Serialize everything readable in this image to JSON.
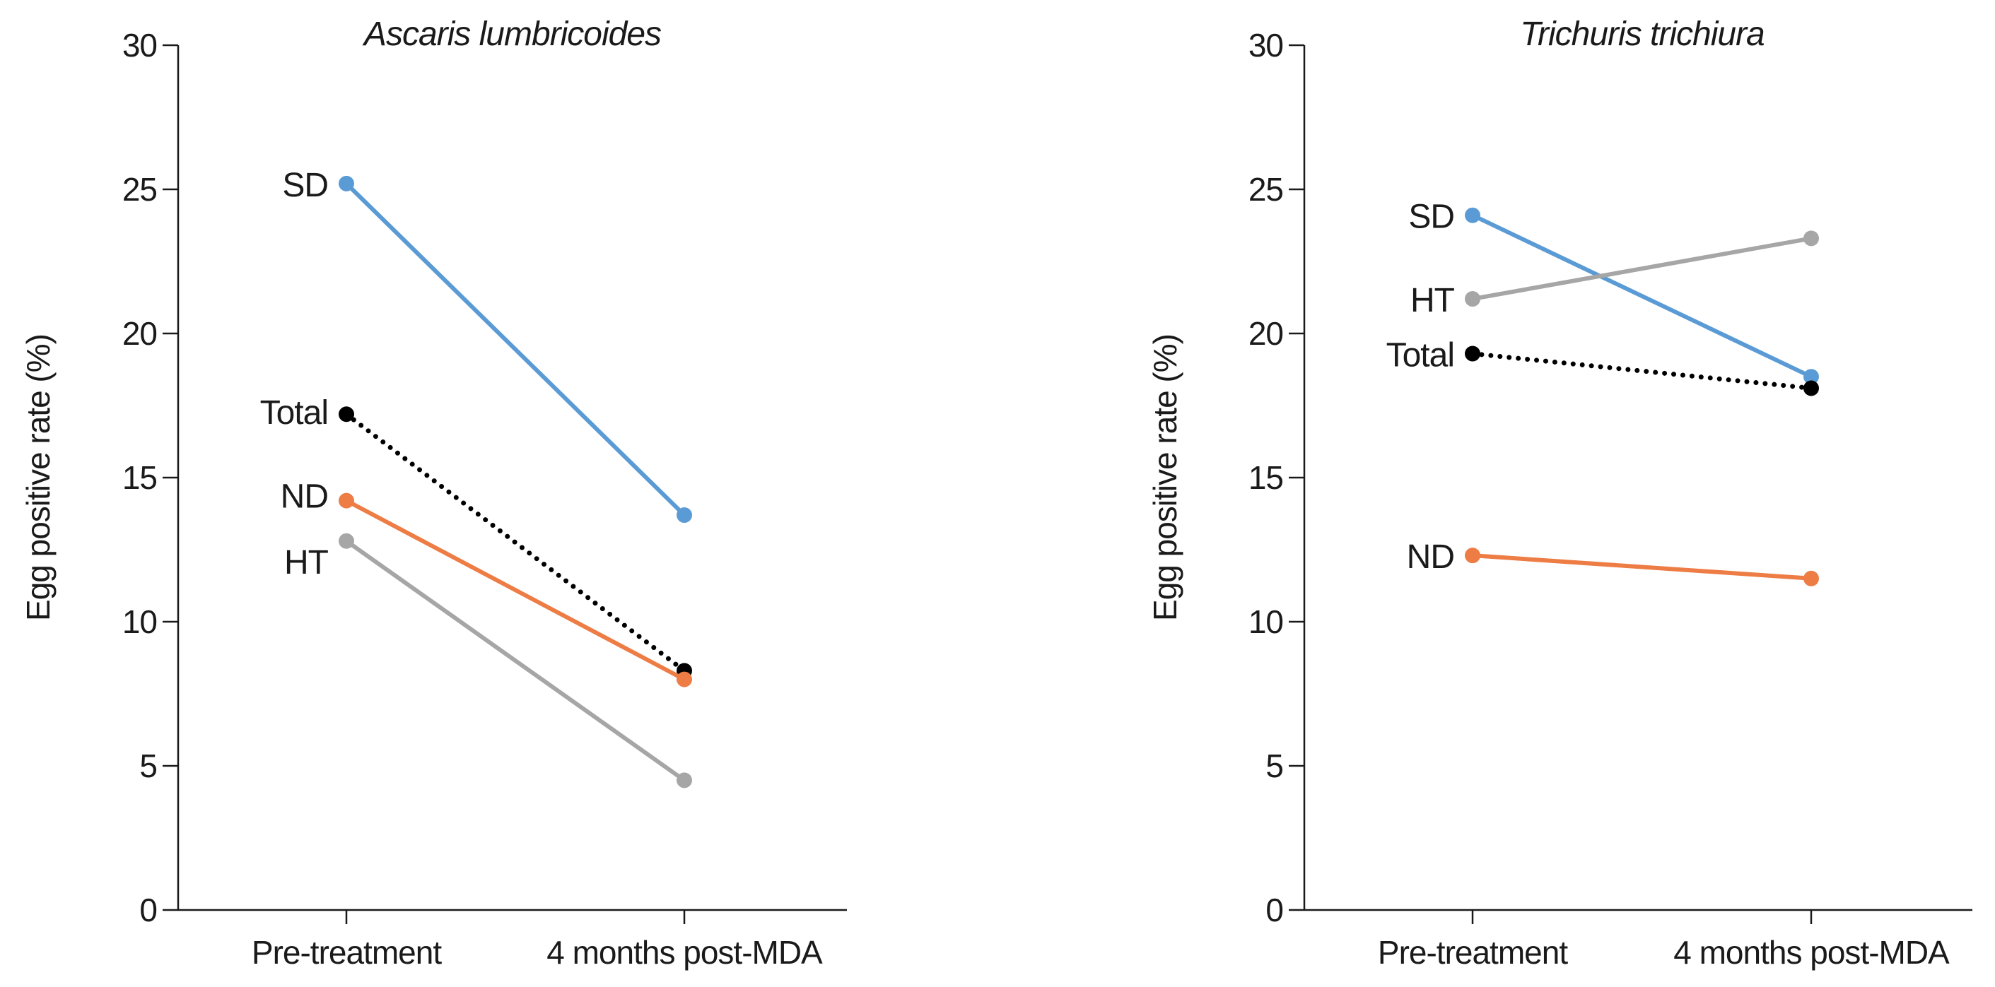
{
  "chart_data": [
    {
      "type": "line",
      "title": "Ascaris lumbricoides",
      "xlabel": "",
      "ylabel": "Egg positive rate (%)",
      "ylim": [
        0,
        30
      ],
      "yticks": [
        0,
        5,
        10,
        15,
        20,
        25,
        30
      ],
      "categories": [
        "Pre-treatment",
        "4 months post-MDA"
      ],
      "series": [
        {
          "name": "SD",
          "values": [
            25.2,
            13.7
          ],
          "color": "#5b9bd5",
          "style": "solid"
        },
        {
          "name": "Total",
          "values": [
            17.2,
            8.3
          ],
          "color": "#000000",
          "style": "dotted"
        },
        {
          "name": "ND",
          "values": [
            14.2,
            8.0
          ],
          "color": "#ed7d45",
          "style": "solid"
        },
        {
          "name": "HT",
          "values": [
            12.8,
            4.5
          ],
          "color": "#a6a6a6",
          "style": "solid"
        }
      ]
    },
    {
      "type": "line",
      "title": "Trichuris trichiura",
      "xlabel": "",
      "ylabel": "Egg positive rate (%)",
      "ylim": [
        0,
        30
      ],
      "yticks": [
        0,
        5,
        10,
        15,
        20,
        25,
        30
      ],
      "categories": [
        "Pre-treatment",
        "4 months post-MDA"
      ],
      "series": [
        {
          "name": "SD",
          "values": [
            24.1,
            18.5
          ],
          "color": "#5b9bd5",
          "style": "solid"
        },
        {
          "name": "HT",
          "values": [
            21.2,
            23.3
          ],
          "color": "#a6a6a6",
          "style": "solid"
        },
        {
          "name": "Total",
          "values": [
            19.3,
            18.1
          ],
          "color": "#000000",
          "style": "dotted"
        },
        {
          "name": "ND",
          "values": [
            12.3,
            11.5
          ],
          "color": "#ed7d45",
          "style": "solid"
        }
      ]
    }
  ]
}
